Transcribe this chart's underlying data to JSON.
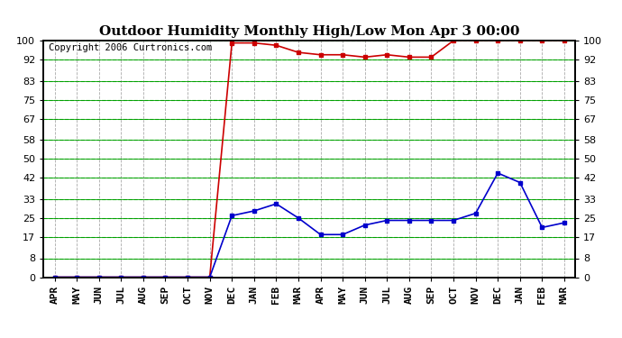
{
  "title": "Outdoor Humidity Monthly High/Low Mon Apr 3 00:00",
  "copyright": "Copyright 2006 Curtronics.com",
  "x_labels": [
    "APR",
    "MAY",
    "JUN",
    "JUL",
    "AUG",
    "SEP",
    "OCT",
    "NOV",
    "DEC",
    "JAN",
    "FEB",
    "MAR",
    "APR",
    "MAY",
    "JUN",
    "JUL",
    "AUG",
    "SEP",
    "OCT",
    "NOV",
    "DEC",
    "JAN",
    "FEB",
    "MAR"
  ],
  "high_values": [
    0,
    0,
    0,
    0,
    0,
    0,
    0,
    0,
    99,
    99,
    98,
    95,
    94,
    94,
    93,
    94,
    93,
    93,
    100,
    100,
    100,
    100,
    100,
    100
  ],
  "low_values": [
    0,
    0,
    0,
    0,
    0,
    0,
    0,
    0,
    26,
    28,
    31,
    25,
    18,
    18,
    22,
    24,
    24,
    24,
    24,
    27,
    44,
    40,
    21,
    23
  ],
  "high_color": "#cc0000",
  "low_color": "#0000cc",
  "bg_color": "#ffffff",
  "grid_color_green_solid": "#009900",
  "grid_color_green_dash": "#00cc00",
  "grid_color_gray_dash": "#aaaaaa",
  "yticks": [
    0,
    8,
    17,
    25,
    33,
    42,
    50,
    58,
    67,
    75,
    83,
    92,
    100
  ],
  "ylim": [
    0,
    100
  ],
  "title_fontsize": 11,
  "tick_fontsize": 8,
  "copyright_fontsize": 7.5
}
